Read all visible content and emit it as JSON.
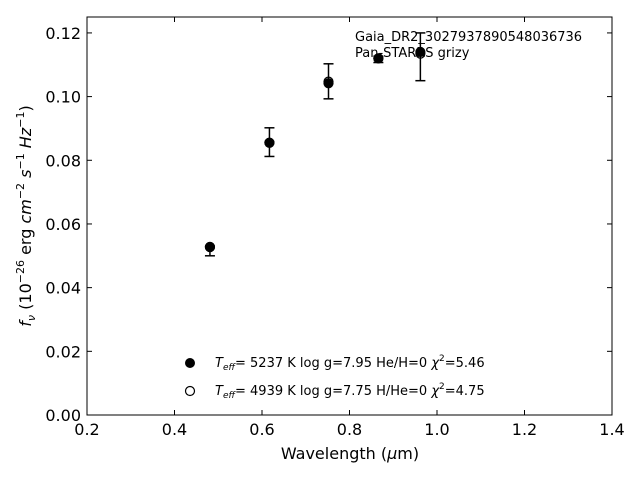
{
  "chart_data": {
    "type": "scatter",
    "xlabel": "Wavelength (μm)",
    "ylabel": "f_ν (10⁻²⁶ erg cm⁻² s⁻¹ Hz⁻¹)",
    "xlim": [
      0.2,
      1.4
    ],
    "ylim": [
      0.0,
      0.125
    ],
    "x_ticks": [
      0.2,
      0.4,
      0.6,
      0.8,
      1.0,
      1.2,
      1.4
    ],
    "x_tick_labels": [
      "0.2",
      "0.4",
      "0.6",
      "0.8",
      "1.0",
      "1.2",
      "1.4"
    ],
    "y_ticks": [
      0.0,
      0.02,
      0.04,
      0.06,
      0.08,
      0.1,
      0.12
    ],
    "y_tick_labels": [
      "0.00",
      "0.02",
      "0.04",
      "0.06",
      "0.08",
      "0.10",
      "0.12"
    ],
    "grid": false,
    "annotations": [
      "Gaia_DR2_3027937890548036736",
      "Pan-STARRS grizy"
    ],
    "observed": {
      "x": [
        0.481,
        0.617,
        0.752,
        0.866,
        0.962
      ],
      "y": [
        0.0515,
        0.0857,
        0.1048,
        0.1117,
        0.1125
      ],
      "yerr": [
        0.0015,
        0.0045,
        0.0055,
        0.001,
        0.0075
      ]
    },
    "series": [
      {
        "name": "T_eff= 5237 K log g=7.95 He/H=0 χ²=5.46",
        "marker": "filled-circle",
        "x": [
          0.481,
          0.617,
          0.752,
          0.866,
          0.962
        ],
        "y": [
          0.0527,
          0.0855,
          0.1042,
          0.112,
          0.114
        ]
      },
      {
        "name": "T_eff= 4939 K log g=7.75 H/He=0 χ²=4.75",
        "marker": "open-circle",
        "x": [
          0.481,
          0.617,
          0.752,
          0.866,
          0.962
        ],
        "y": [
          0.0528,
          0.0855,
          0.1047,
          0.112,
          0.1135
        ]
      }
    ],
    "legend_placement": "lower-center",
    "legend": [
      {
        "teff_value": "5237",
        "rest": "K  log g=7.95  He/H=0",
        "chi_value": "=5.46"
      },
      {
        "teff_value": "4939",
        "rest": "K  log g=7.75  H/He=0",
        "chi_value": "=4.75"
      }
    ]
  }
}
